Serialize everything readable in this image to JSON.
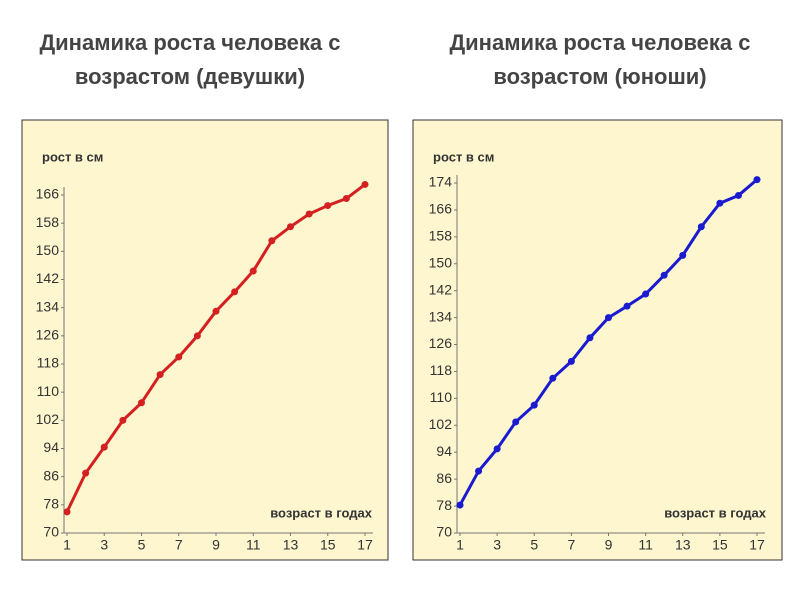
{
  "chart_data": [
    {
      "type": "line",
      "title": "Динамика роста человека с возрастом (девушки)",
      "ylabel": "рост в см",
      "xlabel": "возраст в годах",
      "x": [
        1,
        2,
        3,
        4,
        5,
        6,
        7,
        8,
        9,
        10,
        11,
        12,
        13,
        14,
        15,
        16,
        17
      ],
      "series": [
        {
          "color": "#d42020",
          "values": [
            76,
            87,
            94.4,
            102,
            107,
            115,
            120,
            126,
            133,
            138.5,
            144.4,
            153,
            157,
            160.6,
            163,
            165,
            169
          ]
        }
      ],
      "xlim": [
        1,
        17
      ],
      "xticks": [
        1,
        3,
        5,
        7,
        9,
        11,
        13,
        15,
        17
      ],
      "ylim": [
        70,
        166
      ],
      "yticks": [
        70,
        78,
        86,
        94,
        102,
        110,
        118,
        126,
        134,
        142,
        150,
        158,
        166
      ]
    },
    {
      "type": "line",
      "title": "Динамика роста человека с возрастом (юноши)",
      "ylabel": "рост в см",
      "xlabel": "возраст в годах",
      "x": [
        1,
        2,
        3,
        4,
        5,
        6,
        7,
        8,
        9,
        10,
        11,
        12,
        13,
        14,
        15,
        16,
        17
      ],
      "series": [
        {
          "color": "#1a1ad0",
          "values": [
            78.3,
            88.4,
            95,
            103,
            108,
            116,
            121,
            128,
            134,
            137.4,
            141,
            146.6,
            152.5,
            161,
            168,
            170.3,
            175
          ]
        }
      ],
      "xlim": [
        1,
        17
      ],
      "xticks": [
        1,
        3,
        5,
        7,
        9,
        11,
        13,
        15,
        17
      ],
      "ylim": [
        70,
        174
      ],
      "yticks": [
        70,
        78,
        86,
        94,
        102,
        110,
        118,
        126,
        134,
        142,
        150,
        158,
        166,
        174
      ]
    }
  ]
}
